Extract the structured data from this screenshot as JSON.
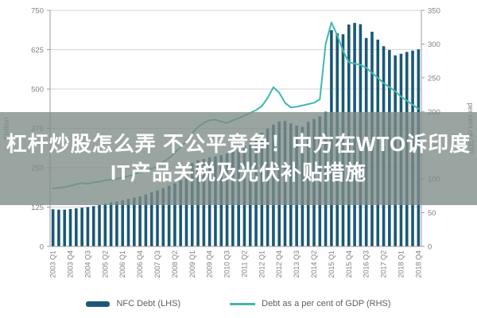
{
  "overlay": {
    "line1": "杠杆炒股怎么弄 不公平竞争！中方在WTO诉印度",
    "line2": "IT产品关税及光伏补贴措施",
    "background": "#7e8c88",
    "text_color": "#ffffff"
  },
  "chart_data": {
    "type": "bar",
    "subtype": "bar+line dual axis",
    "categories": [
      "2003 Q1",
      "2003 Q2",
      "2003 Q3",
      "2003 Q4",
      "2004 Q1",
      "2004 Q2",
      "2004 Q3",
      "2004 Q4",
      "2005 Q1",
      "2005 Q2",
      "2005 Q3",
      "2005 Q4",
      "2006 Q1",
      "2006 Q2",
      "2006 Q3",
      "2006 Q4",
      "2007 Q1",
      "2007 Q2",
      "2007 Q3",
      "2007 Q4",
      "2008 Q1",
      "2008 Q2",
      "2008 Q3",
      "2008 Q4",
      "2009 Q1",
      "2009 Q2",
      "2009 Q3",
      "2009 Q4",
      "2010 Q1",
      "2010 Q2",
      "2010 Q3",
      "2010 Q4",
      "2011 Q1",
      "2011 Q2",
      "2011 Q3",
      "2011 Q4",
      "2012 Q1",
      "2012 Q2",
      "2012 Q3",
      "2012 Q4",
      "2013 Q1",
      "2013 Q2",
      "2013 Q3",
      "2013 Q4",
      "2014 Q1",
      "2014 Q2",
      "2014 Q3",
      "2014 Q4",
      "2015 Q1",
      "2015 Q2",
      "2015 Q3",
      "2015 Q4",
      "2016 Q1",
      "2016 Q2",
      "2016 Q3",
      "2016 Q4",
      "2017 Q1",
      "2017 Q2",
      "2017 Q3",
      "2017 Q4",
      "2018 Q1",
      "2018 Q2",
      "2018 Q3",
      "2018 Q4"
    ],
    "xtick_step": 3,
    "series": [
      {
        "name": "NFC Debt (LHS)",
        "render": "bar",
        "axis": "left",
        "color": "#1a5876",
        "values": [
          118,
          117,
          117,
          119,
          121,
          123,
          125,
          128,
          132,
          136,
          140,
          143,
          147,
          151,
          155,
          159,
          165,
          172,
          178,
          185,
          193,
          201,
          210,
          235,
          265,
          274,
          278,
          283,
          286,
          290,
          295,
          303,
          308,
          320,
          333,
          346,
          361,
          374,
          387,
          397,
          399,
          391,
          384,
          380,
          396,
          405,
          413,
          428,
          687,
          677,
          674,
          705,
          710,
          706,
          662,
          682,
          657,
          636,
          624,
          607,
          612,
          618,
          622,
          626
        ]
      },
      {
        "name": "Debt as a per cent of GDP (RHS)",
        "render": "line",
        "axis": "right",
        "color": "#41b7ae",
        "values": [
          86,
          87,
          88,
          90,
          92,
          94,
          93,
          95,
          96,
          98,
          99,
          100,
          102,
          104,
          107,
          110,
          112,
          115,
          119,
          125,
          131,
          139,
          147,
          157,
          168,
          177,
          183,
          187,
          188,
          185,
          183,
          187,
          190,
          194,
          198,
          202,
          208,
          220,
          236,
          228,
          213,
          206,
          207,
          209,
          211,
          213,
          218,
          300,
          332,
          313,
          290,
          273,
          271,
          269,
          265,
          257,
          250,
          242,
          236,
          230,
          222,
          216,
          210,
          204
        ]
      }
    ],
    "left_axis": {
      "label": "€billion",
      "min": 0,
      "max": 750,
      "ticks": [
        0,
        125,
        250,
        375,
        500,
        625,
        750
      ]
    },
    "right_axis": {
      "label": "per cent of GDP",
      "min": 0,
      "max": 350,
      "ticks": [
        0,
        50,
        100,
        150,
        200,
        250,
        300,
        350
      ]
    },
    "grid": true,
    "legend_position": "bottom",
    "colors": {
      "grid": "#d6d6d6",
      "axis": "#9b9b9b",
      "tick_text": "#7f7f7f",
      "legend_text": "#5f5f5f",
      "background": "#ffffff"
    }
  }
}
